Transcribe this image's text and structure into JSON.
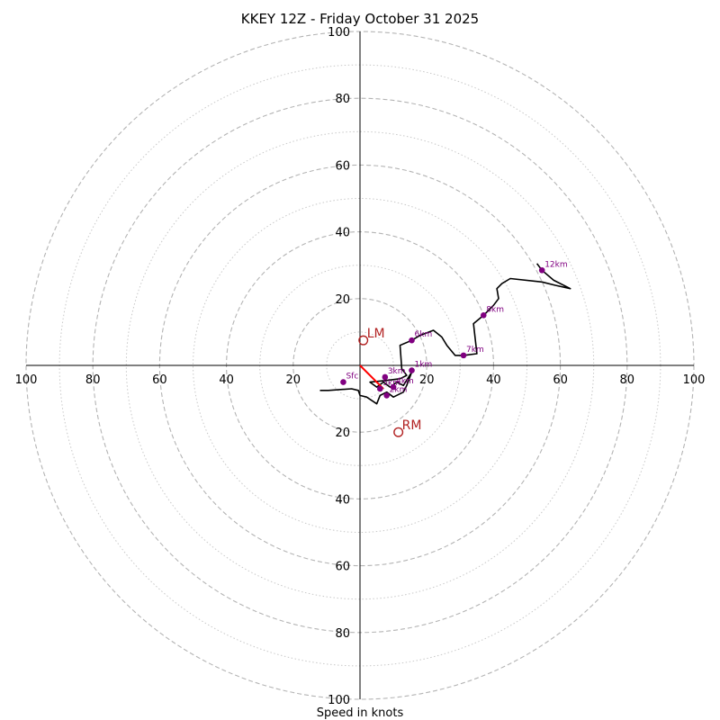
{
  "chart_data": {
    "type": "hodograph",
    "title": "KKEY 12Z - Friday October 31 2025",
    "xlabel": "Speed in knots",
    "max_speed": 100,
    "ring_major": [
      20,
      40,
      60,
      80,
      100
    ],
    "ring_minor": [
      10,
      30,
      50,
      70,
      90
    ],
    "x_tick_labels": [
      "100",
      "80",
      "60",
      "40",
      "20",
      "20",
      "40",
      "60",
      "80",
      "100"
    ],
    "y_tick_labels": [
      "100",
      "80",
      "60",
      "40",
      "20",
      "20",
      "40",
      "60",
      "80",
      "100"
    ],
    "trace_color": "#000000",
    "point_color": "#800080",
    "motion_color": "#b22222",
    "shear_color": "#ff0000",
    "profile": [
      [
        -12,
        -7.5
      ],
      [
        -9.5,
        -7.5
      ],
      [
        -2.5,
        -7
      ],
      [
        -0.5,
        -7.5
      ],
      [
        0,
        -9
      ],
      [
        2,
        -9.5
      ],
      [
        5,
        -11.5
      ],
      [
        6,
        -9
      ],
      [
        8,
        -8
      ],
      [
        10,
        -9.5
      ],
      [
        13,
        -8
      ],
      [
        14,
        -6
      ],
      [
        15.5,
        -2
      ],
      [
        13,
        -6
      ],
      [
        11,
        -5
      ],
      [
        9,
        -6.5
      ],
      [
        7,
        -5
      ],
      [
        5,
        -6.5
      ],
      [
        3,
        -5
      ],
      [
        8,
        -4.5
      ],
      [
        12,
        -4
      ],
      [
        14,
        -3
      ],
      [
        12.5,
        -1
      ],
      [
        12,
        6
      ],
      [
        15.5,
        7.5
      ],
      [
        18,
        9
      ],
      [
        22,
        10.5
      ],
      [
        24.5,
        8.5
      ],
      [
        26,
        6
      ],
      [
        28.5,
        3
      ],
      [
        31,
        3
      ],
      [
        35,
        3.5
      ],
      [
        34,
        12.5
      ],
      [
        37,
        15
      ],
      [
        40,
        18
      ],
      [
        41.5,
        20
      ],
      [
        41,
        23
      ],
      [
        42.5,
        24.5
      ],
      [
        45,
        26
      ],
      [
        54.5,
        25
      ],
      [
        58.5,
        24
      ],
      [
        63,
        23
      ],
      [
        58,
        25.5
      ],
      [
        54.5,
        28.5
      ],
      [
        53,
        30.5
      ]
    ],
    "height_markers": [
      {
        "label": "Sfc",
        "u": -5,
        "v": -5
      },
      {
        "label": "1km",
        "u": 15.5,
        "v": -1.5
      },
      {
        "label": "2km",
        "u": 8,
        "v": -9
      },
      {
        "label": "3km",
        "u": 7.5,
        "v": -3.5
      },
      {
        "label": "4km",
        "u": 10,
        "v": -6.5
      },
      {
        "label": "5km",
        "u": 6,
        "v": -7
      },
      {
        "label": "6km",
        "u": 15.5,
        "v": 7.5
      },
      {
        "label": "7km",
        "u": 31,
        "v": 3
      },
      {
        "label": "8km",
        "u": 37,
        "v": 15
      },
      {
        "label": "12km",
        "u": 54.5,
        "v": 28.5
      }
    ],
    "storm_motion": [
      {
        "label": "LM",
        "u": 1,
        "v": 7.5
      },
      {
        "label": "RM",
        "u": 11.5,
        "v": -20
      }
    ],
    "shear_vector": {
      "from": [
        0,
        0
      ],
      "to": [
        7,
        -7
      ]
    }
  }
}
